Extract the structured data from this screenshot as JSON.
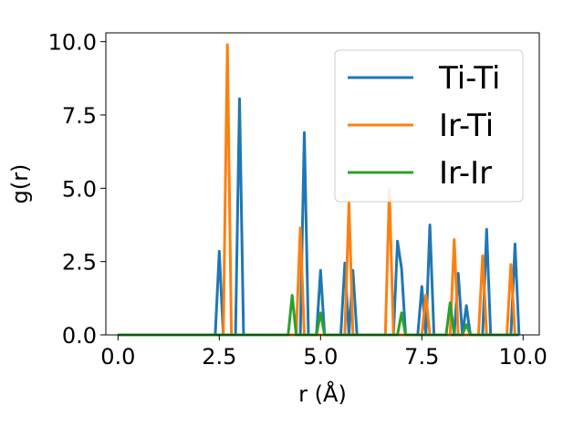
{
  "chart_data": {
    "type": "line",
    "xlabel": "r (Å)",
    "ylabel": "g(r)",
    "xlim": [
      -0.3,
      10.4
    ],
    "ylim": [
      0,
      10.3
    ],
    "xticks": [
      "0.0",
      "2.5",
      "5.0",
      "7.5",
      "10.0"
    ],
    "yticks": [
      "0.0",
      "2.5",
      "5.0",
      "7.5",
      "10.0"
    ],
    "legend": {
      "position": "top-right"
    },
    "grid": false,
    "series": [
      {
        "name": "Ti-Ti",
        "color": "#1f77b4",
        "x": [
          0.0,
          2.4,
          2.5,
          2.6,
          2.9,
          3.0,
          3.1,
          4.5,
          4.6,
          4.7,
          4.9,
          5.0,
          5.1,
          5.5,
          5.6,
          5.7,
          5.8,
          5.9,
          6.8,
          6.9,
          7.0,
          7.1,
          7.4,
          7.5,
          7.6,
          7.7,
          7.8,
          8.3,
          8.4,
          8.5,
          8.6,
          8.7,
          9.0,
          9.1,
          9.2,
          9.7,
          9.8,
          9.9
        ],
        "y": [
          0.0,
          0.0,
          2.85,
          0.0,
          0.0,
          8.05,
          0.0,
          0.0,
          6.9,
          0.0,
          0.0,
          2.2,
          0.0,
          0.0,
          2.45,
          0.0,
          2.2,
          0.0,
          0.0,
          3.2,
          2.25,
          0.0,
          0.0,
          1.65,
          0.0,
          3.75,
          0.0,
          0.0,
          2.1,
          0.0,
          1.0,
          0.0,
          0.0,
          3.6,
          0.0,
          0.0,
          3.1,
          0.0
        ]
      },
      {
        "name": "Ir-Ti",
        "color": "#ff7f0e",
        "x": [
          0.0,
          2.6,
          2.7,
          2.8,
          4.4,
          4.5,
          4.6,
          5.6,
          5.7,
          5.8,
          6.6,
          6.7,
          6.8,
          7.5,
          7.6,
          7.7,
          8.2,
          8.3,
          8.4,
          8.9,
          9.0,
          9.1,
          9.6,
          9.7,
          9.8
        ],
        "y": [
          0.0,
          0.0,
          9.9,
          0.0,
          0.0,
          3.65,
          0.0,
          0.0,
          4.5,
          0.0,
          0.0,
          4.95,
          0.0,
          0.0,
          1.35,
          0.0,
          0.0,
          3.25,
          0.0,
          0.0,
          2.7,
          0.0,
          0.0,
          2.4,
          0.0
        ]
      },
      {
        "name": "Ir-Ir",
        "color": "#2ca02c",
        "x": [
          0.0,
          4.2,
          4.3,
          4.4,
          4.9,
          5.0,
          5.1,
          6.9,
          7.0,
          7.1,
          8.1,
          8.2,
          8.3,
          8.5,
          8.6,
          8.7,
          9.9
        ],
        "y": [
          0.0,
          0.0,
          1.35,
          0.0,
          0.0,
          0.75,
          0.0,
          0.0,
          0.75,
          0.0,
          0.0,
          1.1,
          0.0,
          0.0,
          0.35,
          0.0,
          0.0
        ]
      }
    ]
  }
}
